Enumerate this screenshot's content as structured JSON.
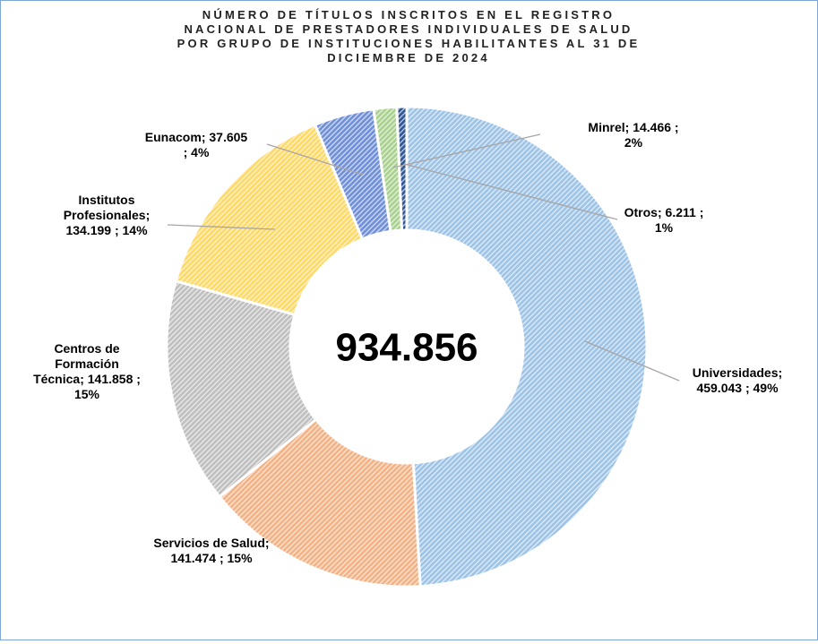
{
  "chart_data": {
    "type": "donut",
    "title_lines": [
      "NÚMERO DE TÍTULOS INSCRITOS EN EL REGISTRO",
      "NACIONAL DE PRESTADORES INDIVIDUALES DE SALUD",
      "POR GRUPO DE INSTITUCIONES HABILITANTES AL 31 DE",
      "DICIEMBRE DE 2024"
    ],
    "categories": [
      "Universidades",
      "Servicios de Salud",
      "Centros de Formación Técnica",
      "Institutos Profesionales",
      "Eunacom",
      "Minrel",
      "Otros"
    ],
    "values": [
      459043,
      141474,
      141858,
      134199,
      37605,
      14466,
      6211
    ],
    "value_labels": [
      "459.043",
      "141.474",
      "141.858",
      "134.199",
      "37.605",
      "14.466",
      "6.211"
    ],
    "percents": [
      49,
      15,
      15,
      14,
      4,
      2,
      1
    ],
    "percent_labels": [
      "49%",
      "15%",
      "15%",
      "14%",
      "4%",
      "2%",
      "1%"
    ],
    "separator": ";",
    "colors": [
      "#9dc3e6",
      "#f4b183",
      "#bfbfbf",
      "#ffd966",
      "#6f8fd8",
      "#a9d18e",
      "#2e5597"
    ],
    "total": 934856,
    "total_label": "934.856"
  }
}
